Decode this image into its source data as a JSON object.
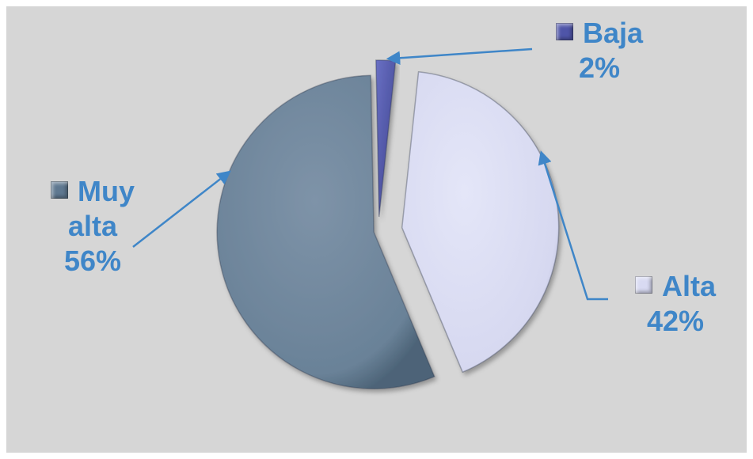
{
  "chart_data": {
    "type": "pie",
    "title": "",
    "slices": [
      {
        "name": "Baja",
        "value": 2,
        "label": "2%",
        "color": "#4f55a8"
      },
      {
        "name": "Alta",
        "value": 42,
        "label": "42%",
        "color": "#d8daf2"
      },
      {
        "name": "Muy alta",
        "value": 56,
        "label": "56%",
        "color": "#6a8298"
      }
    ],
    "label_color": "#3f86c8",
    "background": "#d6d6d6",
    "exploded": true,
    "labels": {
      "baja_line1": "Baja",
      "baja_line2": "2%",
      "alta_line1": "Alta",
      "alta_line2": "42%",
      "muyalta_line1": "Muy",
      "muyalta_line2": "alta",
      "muyalta_line3": "56%"
    }
  }
}
